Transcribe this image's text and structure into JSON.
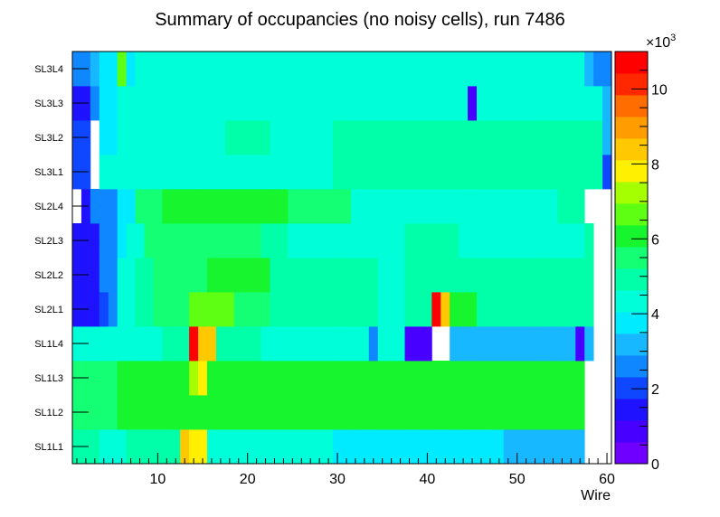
{
  "chart_data": {
    "type": "heatmap",
    "title": "Summary of occupancies (no noisy cells), run 7486",
    "xlabel": "Wire",
    "ylabel": "",
    "xlim": [
      0.5,
      60.5
    ],
    "x_ticks": [
      "10",
      "20",
      "30",
      "40",
      "50",
      "60"
    ],
    "x_tick_values": [
      10,
      20,
      30,
      40,
      50,
      60
    ],
    "rows": [
      "SL1L1",
      "SL1L2",
      "SL1L3",
      "SL1L4",
      "SL2L1",
      "SL2L2",
      "SL2L3",
      "SL2L4",
      "SL3L1",
      "SL3L2",
      "SL3L3",
      "SL3L4"
    ],
    "colorbar": {
      "min": 0,
      "max": 11000,
      "exponent_label": "×10",
      "exponent_power": "3",
      "tick_labels": [
        "0",
        "2",
        "4",
        "6",
        "8",
        "10"
      ],
      "tick_values": [
        0,
        2000,
        4000,
        6000,
        8000,
        10000
      ]
    },
    "values": [
      [
        5000,
        5000,
        4800,
        4200,
        4500,
        4500,
        5000,
        5000,
        5000,
        5000,
        5000,
        5000,
        8500,
        7800,
        7800,
        4400,
        4400,
        4400,
        4400,
        4400,
        4400,
        4400,
        4400,
        4400,
        4400,
        4400,
        4400,
        4400,
        4200,
        4000,
        4000,
        4000,
        4000,
        4000,
        4000,
        4000,
        4000,
        4000,
        4000,
        4000,
        3500,
        3500,
        3500,
        3500,
        3500,
        3500,
        3500,
        3500,
        3000,
        3000,
        3000,
        3000,
        3000,
        3000,
        3000,
        3000,
        3000,
        null,
        null,
        null
      ],
      [
        5500,
        5500,
        5500,
        5500,
        5500,
        6000,
        6000,
        6000,
        6000,
        6000,
        6000,
        6000,
        6000,
        6000,
        6000,
        6000,
        6000,
        6000,
        5800,
        5800,
        5800,
        5800,
        5800,
        5800,
        5800,
        5800,
        5800,
        5800,
        5800,
        6000,
        6000,
        6000,
        6000,
        6000,
        6000,
        6000,
        6000,
        6000,
        6000,
        6000,
        6000,
        6000,
        6000,
        6000,
        6000,
        6000,
        6000,
        6000,
        6000,
        6000,
        6000,
        6000,
        6000,
        6000,
        6000,
        6000,
        6000,
        null,
        null,
        null
      ],
      [
        5500,
        5500,
        5500,
        5500,
        5500,
        6000,
        6000,
        6000,
        6000,
        6000,
        6000,
        6000,
        6000,
        7000,
        8000,
        6000,
        6000,
        6000,
        6000,
        6000,
        6000,
        6000,
        6000,
        6000,
        6000,
        6000,
        6000,
        6000,
        6000,
        6000,
        6000,
        6000,
        6000,
        6000,
        6000,
        6000,
        6000,
        6000,
        6000,
        6000,
        6000,
        6000,
        6000,
        6000,
        6000,
        6000,
        6000,
        6000,
        6000,
        6000,
        6000,
        6000,
        6000,
        6000,
        6000,
        6000,
        6000,
        null,
        null,
        null
      ],
      [
        4500,
        4500,
        4500,
        4500,
        4500,
        4500,
        4500,
        4500,
        4500,
        4500,
        5000,
        5000,
        5000,
        10500,
        8500,
        8500,
        5000,
        5000,
        5000,
        5000,
        5000,
        4200,
        4200,
        4200,
        4200,
        4200,
        4200,
        4200,
        4200,
        4200,
        4200,
        4200,
        4200,
        2500,
        4200,
        4200,
        4200,
        1000,
        1000,
        1000,
        null,
        null,
        3000,
        3000,
        3000,
        3000,
        3000,
        3000,
        3000,
        3000,
        3000,
        3000,
        3000,
        3000,
        3000,
        3000,
        1000,
        3000,
        null,
        null
      ],
      [
        1500,
        1500,
        1500,
        2200,
        2500,
        4500,
        4500,
        5000,
        5000,
        5500,
        5500,
        5500,
        5500,
        6500,
        6500,
        6500,
        6500,
        6500,
        5500,
        5500,
        5500,
        5500,
        5000,
        5000,
        5000,
        5000,
        5000,
        5000,
        5000,
        5000,
        5000,
        5000,
        5000,
        5000,
        4500,
        4500,
        4500,
        5000,
        5000,
        5000,
        10500,
        8500,
        6000,
        6000,
        6000,
        5000,
        5000,
        5000,
        5000,
        5000,
        5000,
        5000,
        5000,
        5000,
        5000,
        5000,
        5000,
        5000,
        null,
        null
      ],
      [
        1500,
        1500,
        1500,
        2500,
        2500,
        4500,
        4500,
        5000,
        5000,
        5500,
        5500,
        5500,
        5500,
        5500,
        5500,
        6000,
        6000,
        6000,
        6000,
        6000,
        6000,
        6000,
        5000,
        5000,
        5000,
        5000,
        5000,
        5000,
        5000,
        5000,
        5000,
        5000,
        5000,
        5000,
        4500,
        4500,
        4500,
        5000,
        5000,
        5000,
        5000,
        5000,
        5000,
        5000,
        5000,
        5000,
        5000,
        5000,
        5000,
        5000,
        5000,
        5000,
        5000,
        5000,
        5000,
        5000,
        5000,
        5000,
        null,
        null
      ],
      [
        1500,
        1500,
        1500,
        2500,
        2500,
        4000,
        4500,
        4500,
        5500,
        5500,
        5500,
        5500,
        5500,
        5500,
        5500,
        5500,
        5500,
        5500,
        5500,
        5500,
        5500,
        5000,
        5000,
        5000,
        4500,
        4500,
        4500,
        4500,
        4500,
        4500,
        4500,
        4500,
        4500,
        4500,
        4500,
        4500,
        4500,
        5000,
        5000,
        5000,
        5000,
        5000,
        5000,
        4500,
        4500,
        4500,
        4500,
        4500,
        4500,
        4500,
        4500,
        4500,
        4500,
        4500,
        4500,
        4500,
        4500,
        5000,
        null,
        null
      ],
      [
        null,
        1500,
        2500,
        2500,
        2500,
        3500,
        4000,
        5500,
        5500,
        5500,
        6000,
        6000,
        6000,
        6000,
        6000,
        6000,
        6000,
        6000,
        6000,
        6000,
        6000,
        6000,
        6000,
        6000,
        5500,
        5500,
        5500,
        5500,
        5500,
        5500,
        5500,
        4500,
        4500,
        4500,
        4500,
        4500,
        4500,
        4500,
        4500,
        4500,
        4500,
        4500,
        4500,
        4500,
        4500,
        4500,
        4500,
        4500,
        4500,
        4500,
        4500,
        4500,
        4500,
        4500,
        5000,
        5000,
        5000,
        null,
        null,
        null
      ],
      [
        2000,
        2000,
        null,
        4500,
        4500,
        4500,
        4500,
        4500,
        4500,
        4500,
        4500,
        4500,
        4500,
        4500,
        4500,
        4500,
        4500,
        4500,
        4500,
        4500,
        4500,
        4500,
        4500,
        4500,
        4500,
        4500,
        4500,
        4500,
        4500,
        5000,
        5000,
        5000,
        5000,
        5000,
        5000,
        5000,
        5000,
        5000,
        5000,
        5000,
        5000,
        5000,
        5000,
        5000,
        5000,
        5000,
        5000,
        5000,
        5000,
        5000,
        5000,
        5000,
        5000,
        5000,
        5000,
        5000,
        5000,
        5000,
        5000,
        2000
      ],
      [
        2000,
        2000,
        null,
        4000,
        3500,
        4500,
        4500,
        4500,
        4500,
        4500,
        4500,
        4500,
        4500,
        4500,
        4500,
        4500,
        4500,
        5000,
        5000,
        5000,
        5000,
        5000,
        4500,
        4500,
        4500,
        4500,
        4500,
        4500,
        4500,
        5000,
        5000,
        5000,
        5000,
        5000,
        5000,
        5000,
        5000,
        5000,
        5000,
        5000,
        5000,
        5000,
        5000,
        5000,
        5000,
        5000,
        5000,
        5000,
        5000,
        5000,
        5000,
        5000,
        5000,
        5000,
        5000,
        5000,
        5000,
        5000,
        5000,
        3000
      ],
      [
        1500,
        1500,
        2500,
        4000,
        4000,
        4500,
        4500,
        4500,
        4500,
        4500,
        4500,
        4500,
        4500,
        4500,
        4500,
        4500,
        4500,
        4500,
        4500,
        4500,
        4500,
        4500,
        4500,
        4500,
        4500,
        4500,
        4500,
        4500,
        4500,
        4500,
        4500,
        4500,
        4500,
        4500,
        4500,
        4500,
        4500,
        4500,
        4500,
        4500,
        4500,
        4500,
        4500,
        4500,
        1000,
        4500,
        4500,
        4500,
        4500,
        4500,
        4500,
        4500,
        4500,
        4500,
        4500,
        4500,
        4500,
        4500,
        4500,
        3000
      ],
      [
        2500,
        2500,
        3000,
        3500,
        3500,
        6800,
        4000,
        4500,
        4500,
        4500,
        4500,
        4500,
        4500,
        4500,
        4500,
        4500,
        4500,
        4500,
        4500,
        4500,
        4500,
        4500,
        4500,
        4500,
        4500,
        4500,
        4500,
        4500,
        4500,
        4500,
        4500,
        4500,
        4500,
        4500,
        4500,
        4500,
        4500,
        4500,
        4500,
        4500,
        4500,
        4500,
        4500,
        4500,
        4500,
        4500,
        4500,
        4500,
        4500,
        4500,
        4500,
        4500,
        4500,
        4500,
        4500,
        4500,
        4500,
        3000,
        2500,
        2500
      ]
    ],
    "palette": [
      "#6f00ff",
      "#4700ff",
      "#1f12ff",
      "#0f47ff",
      "#0f88ff",
      "#17b8ff",
      "#00ebff",
      "#00ffd8",
      "#00ffa8",
      "#14ff74",
      "#16f52e",
      "#5eff12",
      "#a6ff00",
      "#ffef00",
      "#ffc800",
      "#ff9d00",
      "#ff6d00",
      "#ff2800",
      "#ff0000"
    ]
  }
}
